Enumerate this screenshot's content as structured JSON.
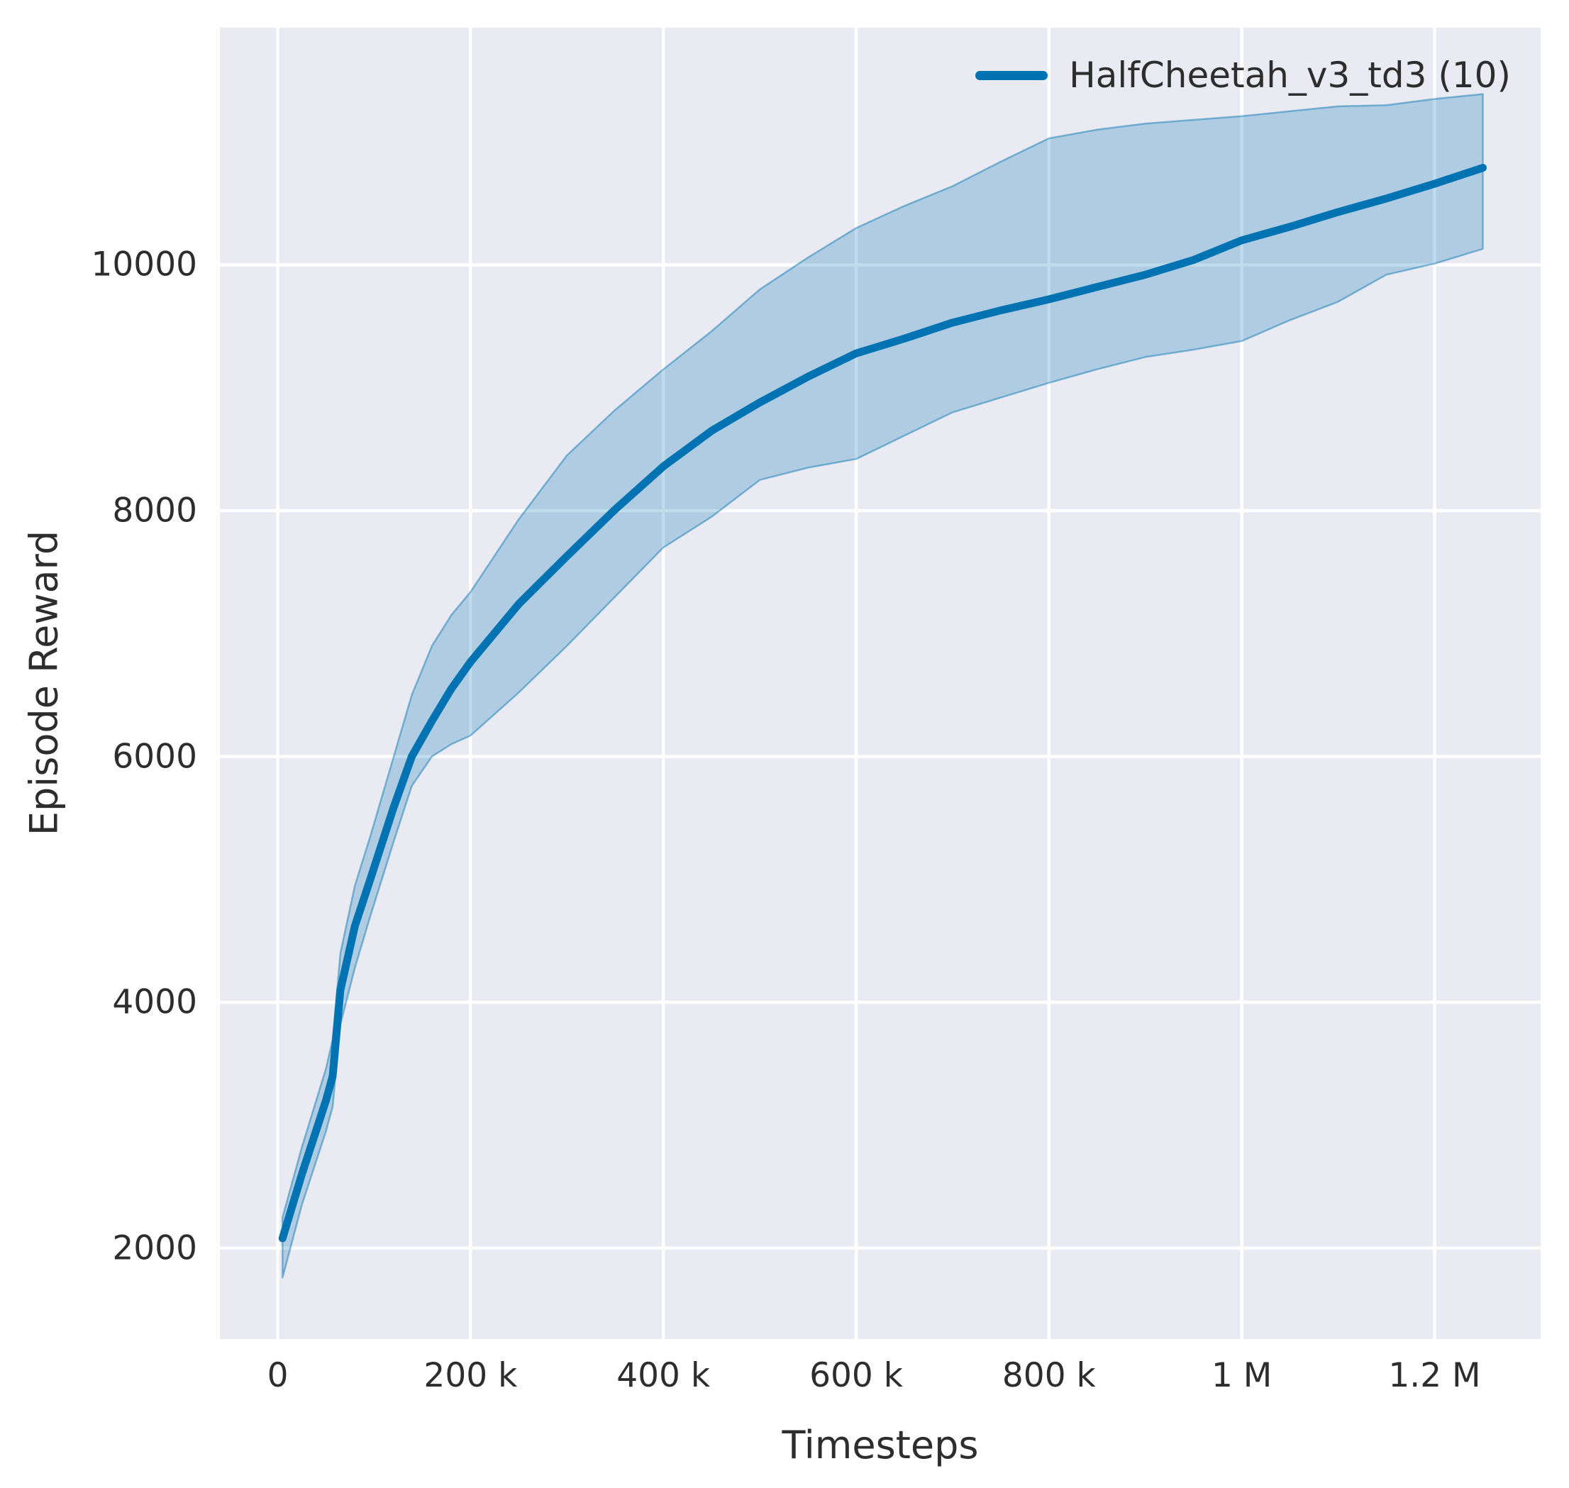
{
  "figure": {
    "background": "#ffffff",
    "plot_background": "#eaeaf2",
    "grid_color": "#ffffff",
    "text_color": "#2d2d2d"
  },
  "legend": {
    "label": "HalfCheetah_v3_td3 (10)",
    "line_color": "#0173b2",
    "position": "upper right"
  },
  "chart_data": {
    "type": "line",
    "title": "",
    "xlabel": "Timesteps",
    "ylabel": "Episode Reward",
    "xlim": [
      -60000,
      1310000
    ],
    "ylim": [
      1260,
      11930
    ],
    "grid": true,
    "xticks": {
      "values": [
        0,
        200000,
        400000,
        600000,
        800000,
        1000000,
        1200000
      ],
      "labels": [
        "0",
        "200 k",
        "400 k",
        "600 k",
        "800 k",
        "1 M",
        "1.2 M"
      ]
    },
    "yticks": {
      "values": [
        2000,
        4000,
        6000,
        8000,
        10000
      ],
      "labels": [
        "2000",
        "4000",
        "6000",
        "8000",
        "10000"
      ]
    },
    "series": [
      {
        "name": "HalfCheetah_v3_td3 (10)",
        "color": "#0173b2",
        "band_fill": "rgba(1,115,178,0.25)",
        "band_edge": "rgba(1,115,178,0.45)",
        "x": [
          5000,
          25000,
          50000,
          57000,
          65000,
          80000,
          96000,
          120000,
          139000,
          160000,
          180000,
          200000,
          250000,
          300000,
          350000,
          400000,
          450000,
          500000,
          550000,
          600000,
          650000,
          700000,
          750000,
          800000,
          850000,
          900000,
          950000,
          1000000,
          1050000,
          1100000,
          1150000,
          1200000,
          1250000
        ],
        "mean": [
          2080,
          2600,
          3200,
          3400,
          4100,
          4620,
          5000,
          5580,
          6000,
          6290,
          6550,
          6770,
          7240,
          7630,
          8010,
          8360,
          8650,
          8880,
          9090,
          9280,
          9400,
          9530,
          9630,
          9720,
          9820,
          9920,
          10040,
          10200,
          10310,
          10430,
          10540,
          10660,
          10790
        ],
        "band_lower": [
          1760,
          2350,
          2950,
          3150,
          3820,
          4280,
          4700,
          5300,
          5760,
          6000,
          6100,
          6170,
          6520,
          6900,
          7300,
          7700,
          7950,
          8250,
          8350,
          8420,
          8610,
          8800,
          8920,
          9040,
          9150,
          9250,
          9310,
          9380,
          9550,
          9700,
          9920,
          10010,
          10130
        ],
        "band_upper": [
          2250,
          2820,
          3460,
          3700,
          4400,
          4950,
          5350,
          5990,
          6500,
          6900,
          7150,
          7340,
          7930,
          8450,
          8820,
          9150,
          9460,
          9800,
          10060,
          10300,
          10480,
          10640,
          10840,
          11030,
          11100,
          11150,
          11180,
          11210,
          11250,
          11290,
          11300,
          11350,
          11390
        ]
      }
    ]
  }
}
